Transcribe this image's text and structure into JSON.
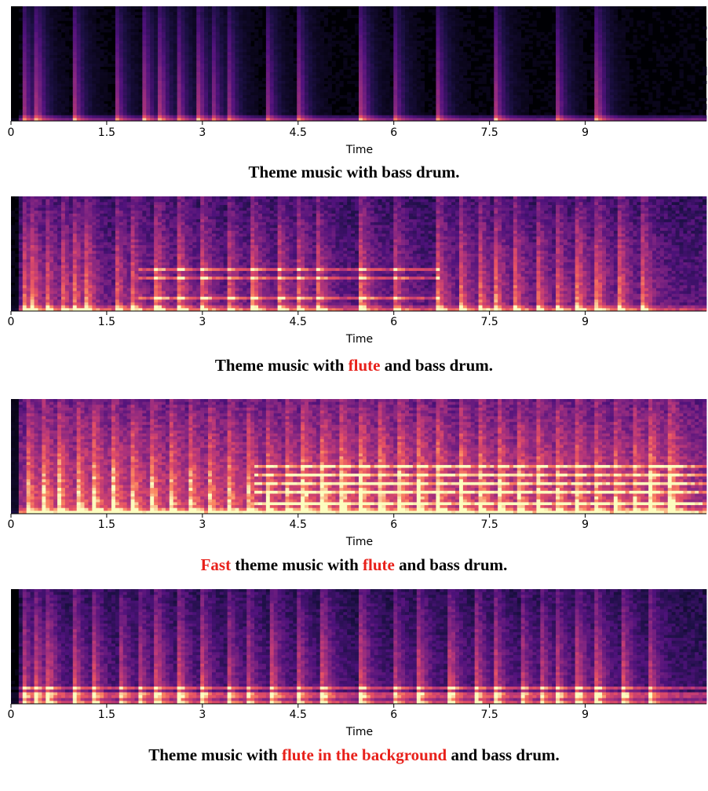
{
  "chart_data": [
    {
      "type": "heatmap",
      "xlabel": "Time",
      "x_ticks": [
        "0",
        "1.5",
        "3",
        "4.5",
        "6",
        "7.5",
        "9"
      ],
      "x_tick_values": [
        0,
        1.5,
        3,
        4.5,
        6,
        7.5,
        9
      ],
      "xlim": [
        0,
        10.9
      ],
      "caption": [
        {
          "text": "Theme music with bass drum.",
          "highlight": false
        }
      ],
      "onsets": [
        0.2,
        0.42,
        1.0,
        1.65,
        2.1,
        2.35,
        2.62,
        2.95,
        3.15,
        3.4,
        4.0,
        4.5,
        5.5,
        6.0,
        6.68,
        7.6,
        8.55,
        9.2
      ],
      "base_intensity": 0.02,
      "noise": 0.04,
      "tonal_lines": [],
      "tonal_segment": [
        0,
        0
      ]
    },
    {
      "type": "heatmap",
      "xlabel": "Time",
      "x_ticks": [
        "0",
        "1.5",
        "3",
        "4.5",
        "6",
        "7.5",
        "9"
      ],
      "x_tick_values": [
        0,
        1.5,
        3,
        4.5,
        6,
        7.5,
        9
      ],
      "xlim": [
        0,
        10.9
      ],
      "caption": [
        {
          "text": "Theme music with ",
          "highlight": false
        },
        {
          "text": "flute",
          "highlight": true
        },
        {
          "text": " and bass drum.",
          "highlight": false
        }
      ],
      "onsets": [
        0.2,
        0.35,
        0.55,
        0.8,
        1.0,
        1.2,
        1.65,
        1.9,
        2.3,
        2.65,
        3.0,
        3.4,
        3.8,
        4.2,
        4.5,
        4.8,
        5.5,
        6.0,
        6.7,
        7.05,
        7.35,
        7.6,
        7.9,
        8.25,
        8.55,
        8.9,
        9.2,
        9.55,
        9.9
      ],
      "base_intensity": 0.25,
      "noise": 0.18,
      "tonal_lines": [
        0.12,
        0.2,
        0.28,
        0.36
      ],
      "tonal_segment": [
        2.0,
        6.7
      ]
    },
    {
      "type": "heatmap",
      "xlabel": "Time",
      "x_ticks": [
        "0",
        "1.5",
        "3",
        "4.5",
        "6",
        "7.5",
        "9"
      ],
      "x_tick_values": [
        0,
        1.5,
        3,
        4.5,
        6,
        7.5,
        9
      ],
      "xlim": [
        0,
        10.9
      ],
      "caption": [
        {
          "text": "Fast",
          "highlight": true
        },
        {
          "text": " theme music with ",
          "highlight": false
        },
        {
          "text": "flute",
          "highlight": true
        },
        {
          "text": " and bass drum.",
          "highlight": false
        }
      ],
      "onsets": [
        0.25,
        0.5,
        0.75,
        1.05,
        1.3,
        1.6,
        1.9,
        2.2,
        2.5,
        2.8,
        3.1,
        3.4,
        3.7,
        4.0,
        4.3,
        4.6,
        4.9,
        5.2,
        5.5,
        5.8,
        6.1,
        6.4,
        6.7,
        7.05,
        7.35,
        7.65,
        7.95,
        8.25,
        8.55,
        8.85,
        9.15,
        9.45,
        9.75,
        10.05,
        10.35
      ],
      "base_intensity": 0.45,
      "noise": 0.2,
      "tonal_lines": [
        0.1,
        0.18,
        0.26,
        0.34,
        0.42
      ],
      "tonal_segment": [
        3.8,
        10.9
      ]
    },
    {
      "type": "heatmap",
      "xlabel": "Time",
      "x_ticks": [
        "0",
        "1.5",
        "3",
        "4.5",
        "6",
        "7.5",
        "9"
      ],
      "x_tick_values": [
        0,
        1.5,
        3,
        4.5,
        6,
        7.5,
        9
      ],
      "xlim": [
        0,
        10.9
      ],
      "caption": [
        {
          "text": "Theme music with ",
          "highlight": false
        },
        {
          "text": "flute in the background",
          "highlight": true
        },
        {
          "text": " and bass drum.",
          "highlight": false
        }
      ],
      "onsets": [
        0.2,
        0.4,
        0.6,
        1.0,
        1.3,
        1.7,
        2.0,
        2.3,
        2.65,
        3.0,
        3.4,
        3.7,
        4.1,
        4.5,
        4.9,
        5.5,
        6.0,
        6.4,
        6.9,
        7.3,
        7.6,
        8.0,
        8.3,
        8.55,
        8.9,
        9.2,
        9.6,
        10.0
      ],
      "base_intensity": 0.18,
      "noise": 0.14,
      "tonal_lines": [
        0.06,
        0.1,
        0.14
      ],
      "tonal_segment": [
        0,
        10.9
      ]
    }
  ],
  "colors": {
    "highlight": "#e8211b"
  }
}
